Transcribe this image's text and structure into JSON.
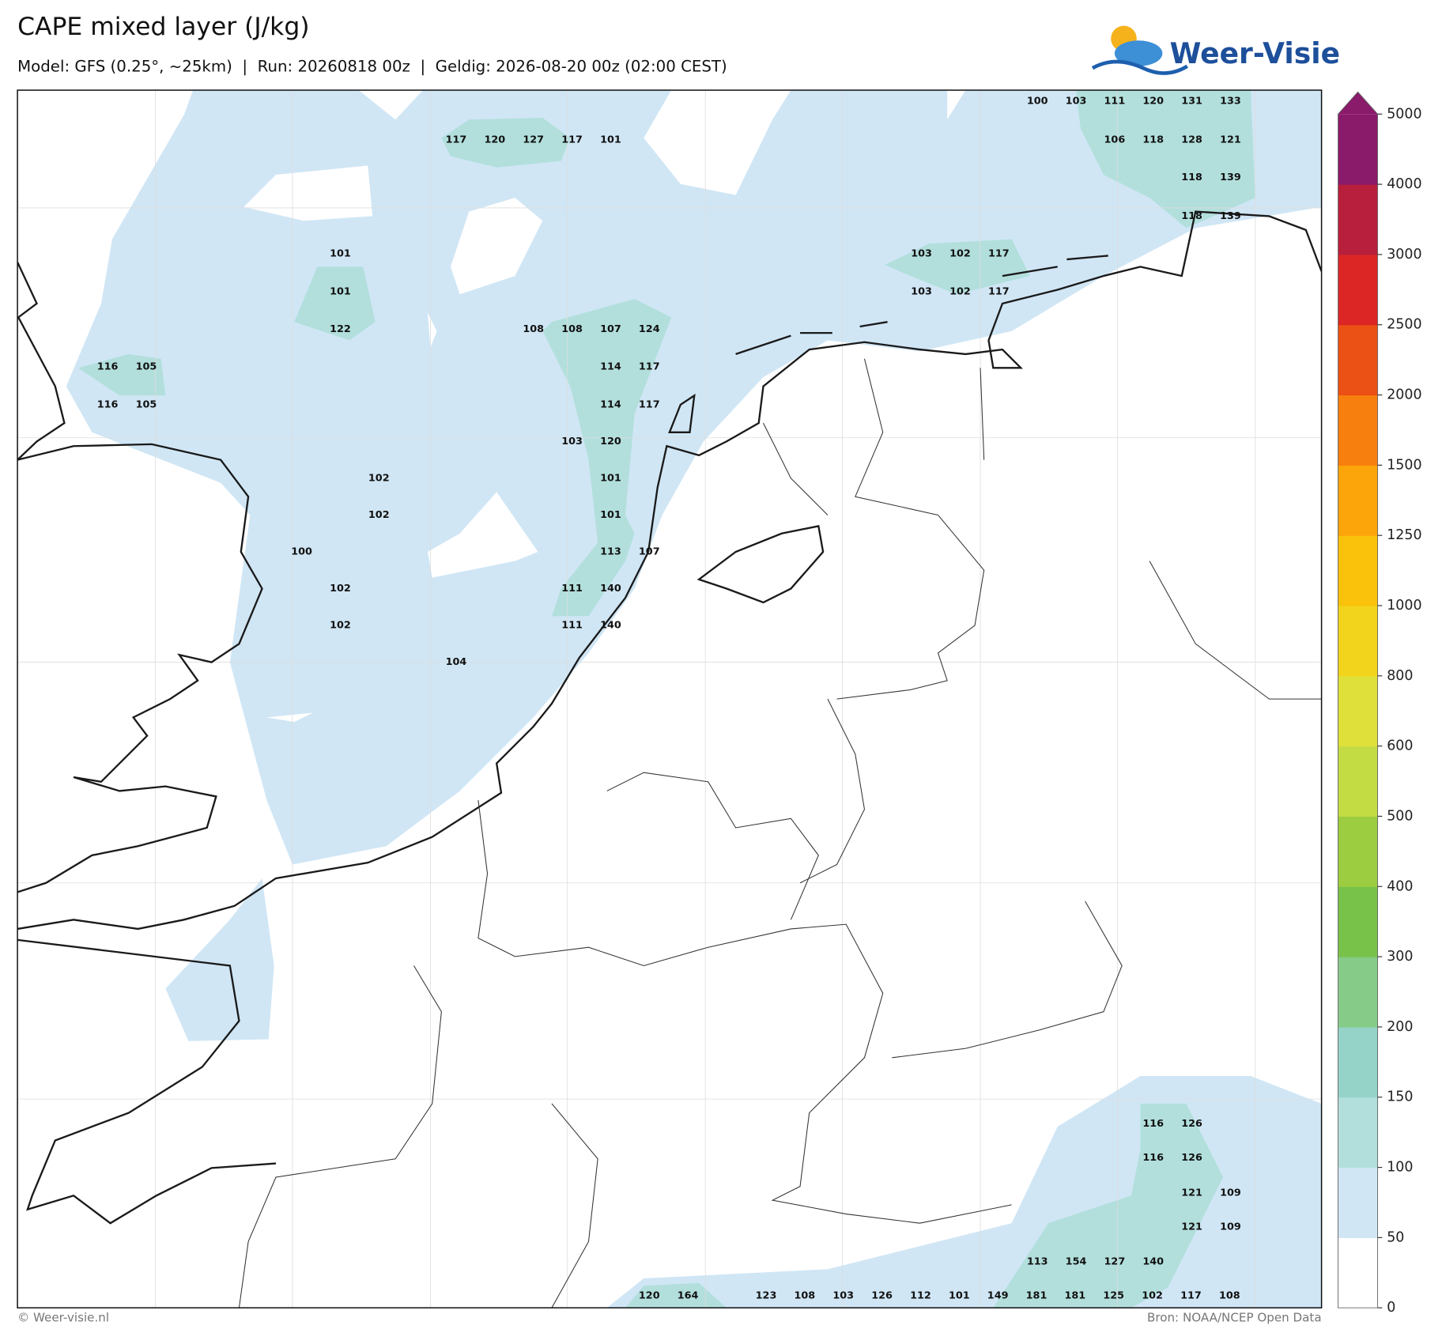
{
  "header": {
    "title": "CAPE mixed layer (J/kg)",
    "subtitle": "Model: GFS (0.25°, ~25km)  |  Run: 20260818 00z  |  Geldig: 2026-08-20 00z (02:00 CEST)"
  },
  "logo": {
    "text": "Weer-Visie"
  },
  "map_labels": [
    100,
    103,
    111,
    120,
    131,
    133,
    117,
    120,
    127,
    117,
    101,
    106,
    118,
    128,
    121,
    118,
    139,
    118,
    139,
    101,
    103,
    102,
    117,
    101,
    103,
    102,
    117,
    122,
    108,
    108,
    107,
    124,
    116,
    105,
    114,
    117,
    116,
    105,
    114,
    117,
    103,
    120,
    102,
    101,
    102,
    101,
    100,
    113,
    107,
    102,
    111,
    140,
    102,
    111,
    140,
    104,
    116,
    126,
    116,
    126,
    121,
    109,
    121,
    109,
    113,
    154,
    127,
    140,
    120,
    164,
    123,
    108,
    103,
    126,
    112,
    101,
    149,
    181,
    181,
    125,
    102,
    117,
    108
  ],
  "colorbar": {
    "ticks": [
      0,
      50,
      100,
      150,
      200,
      300,
      400,
      500,
      600,
      800,
      1000,
      1250,
      1500,
      2000,
      2500,
      3000,
      4000,
      5000
    ],
    "colors": [
      "#ffffff",
      "#d0e6f5",
      "#b2dfdc",
      "#95d3c8",
      "#86cb88",
      "#78c24a",
      "#9ccc3f",
      "#c4dc44",
      "#e0e03a",
      "#f2d41c",
      "#fac20a",
      "#fca50a",
      "#f77f0e",
      "#eb5014",
      "#dc2626",
      "#b81f3c",
      "#8a1a6a"
    ]
  },
  "footer": {
    "left": "© Weer-visie.nl",
    "right": "Bron: NOAA/NCEP Open Data"
  }
}
